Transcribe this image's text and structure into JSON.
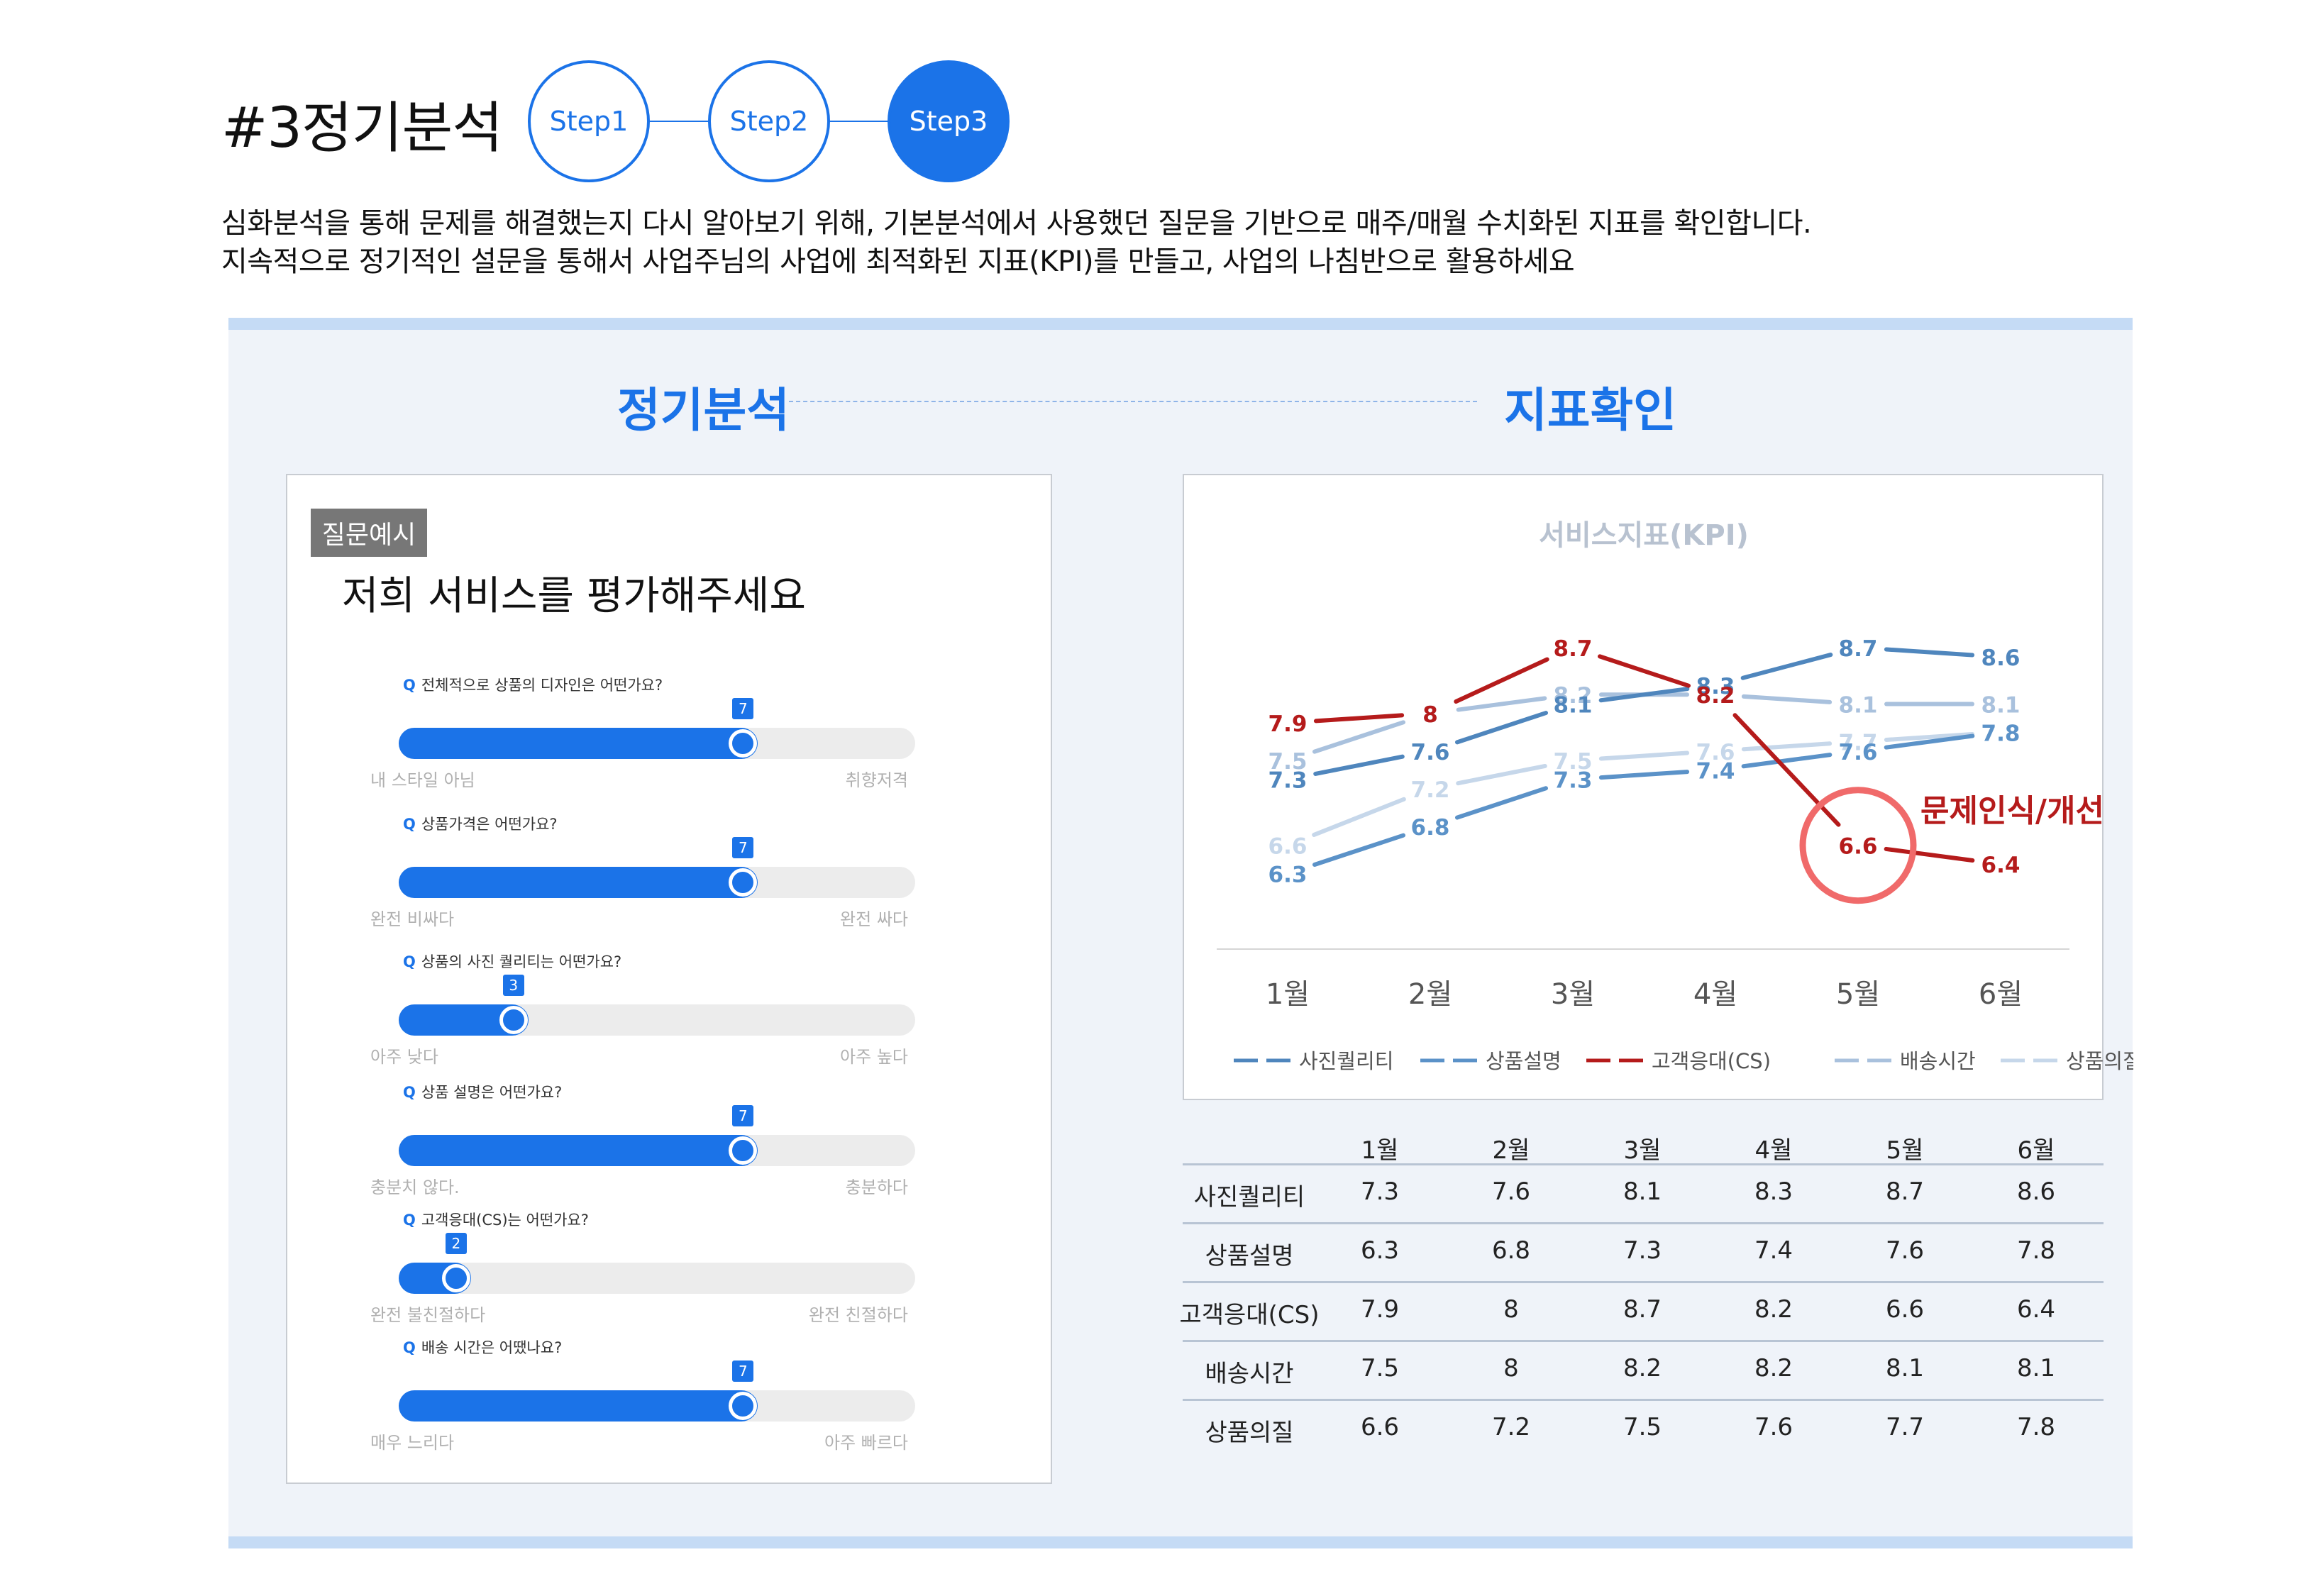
{
  "header": {
    "title": "#3정기분석",
    "steps": [
      "Step1",
      "Step2",
      "Step3"
    ],
    "desc1": "심화분석을 통해 문제를 해결했는지 다시 알아보기 위해, 기본분석에서 사용했던 질문을 기반으로 매주/매월 수치화된 지표를 확인합니다.",
    "desc2": "지속적으로 정기적인 설문을 통해서 사업주님의 사업에 최적화된 지표(KPI)를 만들고, 사업의 나침반으로 활용하세요"
  },
  "sections": {
    "left": "정기분석",
    "right": "지표확인"
  },
  "survey": {
    "badge": "질문예시",
    "main_question": "저희 서비스를 평가해주세요",
    "q_mark": "Q",
    "items": [
      {
        "question": "전체적으로 상품의 디자인은 어떤가요?",
        "value": 7,
        "min_label": "내 스타일 아님",
        "max_label": "취향저격"
      },
      {
        "question": "상품가격은 어떤가요?",
        "value": 7,
        "min_label": "완전 비싸다",
        "max_label": "완전 싸다"
      },
      {
        "question": "상품의 사진 퀄리티는 어떤가요?",
        "value": 3,
        "min_label": "아주 낮다",
        "max_label": "아주 높다"
      },
      {
        "question": "상품 설명은 어떤가요?",
        "value": 7,
        "min_label": "충분치 않다.",
        "max_label": "충분하다"
      },
      {
        "question": "고객응대(CS)는 어떤가요?",
        "value": 2,
        "min_label": "완전 불친절하다",
        "max_label": "완전 친절하다"
      },
      {
        "question": "배송 시간은 어땠나요?",
        "value": 7,
        "min_label": "매우 느리다",
        "max_label": "아주 빠르다"
      }
    ]
  },
  "chart_data": {
    "type": "line",
    "title": "서비스지표(KPI)",
    "categories": [
      "1월",
      "2월",
      "3월",
      "4월",
      "5월",
      "6월"
    ],
    "series": [
      {
        "name": "사진퀄리티",
        "values": [
          7.3,
          7.6,
          8.1,
          8.3,
          8.7,
          8.6
        ],
        "color": "#4f86bd"
      },
      {
        "name": "상품설명",
        "values": [
          6.3,
          6.8,
          7.3,
          7.4,
          7.6,
          7.8
        ],
        "color": "#5b92c8"
      },
      {
        "name": "고객응대(CS)",
        "values": [
          7.9,
          8,
          8.7,
          8.2,
          6.6,
          6.4
        ],
        "color": "#b51b1b"
      },
      {
        "name": "배송시간",
        "values": [
          7.5,
          8,
          8.2,
          8.2,
          8.1,
          8.1
        ],
        "color": "#a9c1dd"
      },
      {
        "name": "상품의질",
        "values": [
          6.6,
          7.2,
          7.5,
          7.6,
          7.7,
          7.8
        ],
        "color": "#c6d7ea"
      }
    ],
    "annotation": "문제인식/개선",
    "highlight": {
      "series": "고객응대(CS)",
      "category": "5월"
    },
    "grid": false,
    "legend": "bottom"
  },
  "table": {
    "headers": [
      "1월",
      "2월",
      "3월",
      "4월",
      "5월",
      "6월"
    ],
    "rows": [
      {
        "label": "사진퀄리티",
        "values": [
          "7.3",
          "7.6",
          "8.1",
          "8.3",
          "8.7",
          "8.6"
        ]
      },
      {
        "label": "상품설명",
        "values": [
          "6.3",
          "6.8",
          "7.3",
          "7.4",
          "7.6",
          "7.8"
        ]
      },
      {
        "label": "고객응대(CS)",
        "values": [
          "7.9",
          "8",
          "8.7",
          "8.2",
          "6.6",
          "6.4"
        ]
      },
      {
        "label": "배송시간",
        "values": [
          "7.5",
          "8",
          "8.2",
          "8.2",
          "8.1",
          "8.1"
        ]
      },
      {
        "label": "상품의질",
        "values": [
          "6.6",
          "7.2",
          "7.5",
          "7.6",
          "7.7",
          "7.8"
        ]
      }
    ]
  }
}
